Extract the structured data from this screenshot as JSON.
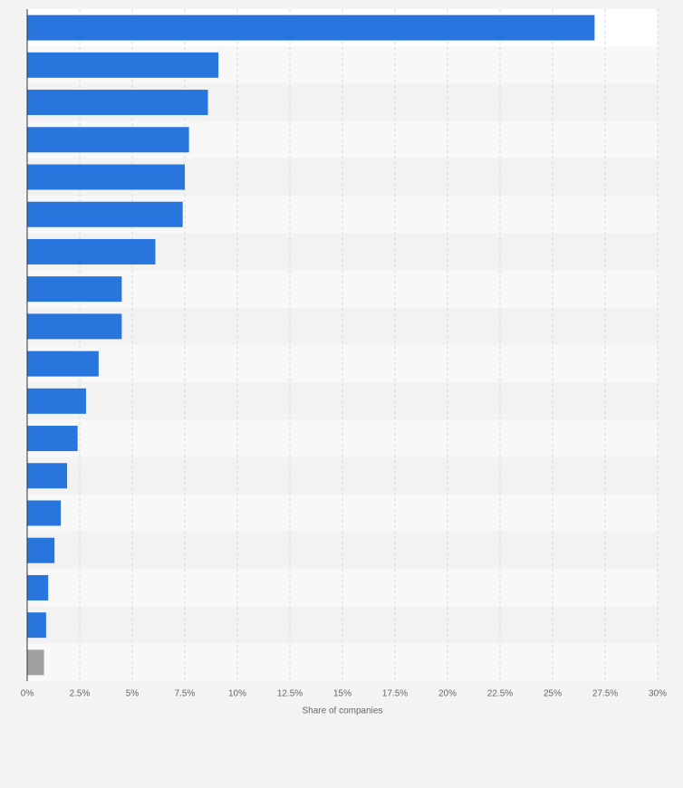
{
  "chart_data": {
    "type": "hbar",
    "categories": [
      null,
      null,
      null,
      null,
      null,
      null,
      null,
      null,
      null,
      null,
      null,
      null,
      null,
      null,
      null,
      null,
      null,
      null
    ],
    "values": [
      27.0,
      9.1,
      8.6,
      7.7,
      7.5,
      7.4,
      6.1,
      4.5,
      4.5,
      3.4,
      2.8,
      2.4,
      1.9,
      1.6,
      1.3,
      1.0,
      0.9,
      0.8
    ],
    "colors": [
      "#2876dd",
      "#2876dd",
      "#2876dd",
      "#2876dd",
      "#2876dd",
      "#2876dd",
      "#2876dd",
      "#2876dd",
      "#2876dd",
      "#2876dd",
      "#2876dd",
      "#2876dd",
      "#2876dd",
      "#2876dd",
      "#2876dd",
      "#2876dd",
      "#2876dd",
      "#a0a0a0"
    ],
    "xlabel": "Share of companies",
    "xlim": [
      0,
      30
    ],
    "xticks": [
      {
        "value": 0,
        "label": "0%"
      },
      {
        "value": 2.5,
        "label": "2.5%"
      },
      {
        "value": 5,
        "label": "5%"
      },
      {
        "value": 7.5,
        "label": "7.5%"
      },
      {
        "value": 10,
        "label": "10%"
      },
      {
        "value": 12.5,
        "label": "12.5%"
      },
      {
        "value": 15,
        "label": "15%"
      },
      {
        "value": 17.5,
        "label": "17.5%"
      },
      {
        "value": 20,
        "label": "20%"
      },
      {
        "value": 22.5,
        "label": "22.5%"
      },
      {
        "value": 25,
        "label": "25%"
      },
      {
        "value": 27.5,
        "label": "27.5%"
      },
      {
        "value": 30,
        "label": "30%"
      }
    ],
    "grid": true
  }
}
